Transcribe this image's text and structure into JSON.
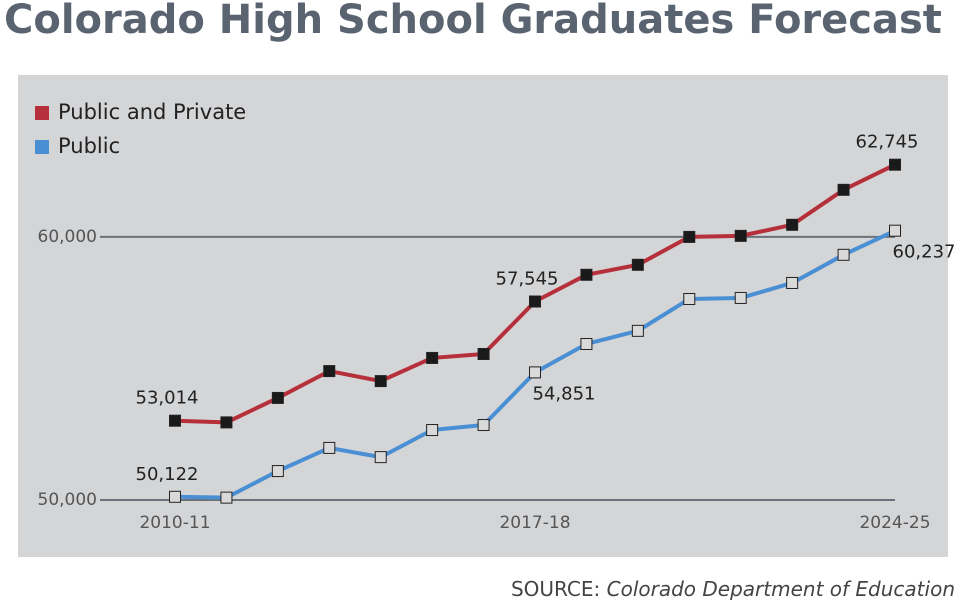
{
  "chart_data": {
    "type": "line",
    "title": "Colorado High School Graduates Forecast",
    "source_label": "SOURCE:",
    "source": "Colorado Department of Education",
    "categories": [
      "2010-11",
      null,
      null,
      null,
      null,
      null,
      null,
      "2017-18",
      null,
      null,
      null,
      null,
      null,
      null,
      "2024-25"
    ],
    "series": [
      {
        "name": "Public and Private",
        "color": "#b5303a",
        "marker_fill": "#1a1a1a",
        "values": [
          53014,
          52950,
          53880,
          54900,
          54520,
          55400,
          55550,
          57545,
          58560,
          58940,
          60000,
          60040,
          60460,
          61790,
          62745
        ],
        "value_labels": [
          "53,014",
          null,
          null,
          null,
          null,
          null,
          null,
          "57,545",
          null,
          null,
          null,
          null,
          null,
          null,
          "62,745"
        ]
      },
      {
        "name": "Public",
        "color": "#4a8fd4",
        "marker_fill": "#d9d9d9",
        "values": [
          50122,
          50090,
          51100,
          51980,
          51630,
          52660,
          52850,
          54851,
          55930,
          56430,
          57640,
          57680,
          58250,
          59320,
          60237
        ],
        "value_labels": [
          "50,122",
          null,
          null,
          null,
          null,
          null,
          null,
          "54,851",
          null,
          null,
          null,
          null,
          null,
          null,
          "60,237"
        ]
      }
    ],
    "ylim": [
      50000,
      63000
    ],
    "yticks": [
      {
        "value": 50000,
        "label": "50,000"
      },
      {
        "value": 60000,
        "label": "60,000"
      }
    ],
    "grid": true,
    "legend": "top-left"
  }
}
